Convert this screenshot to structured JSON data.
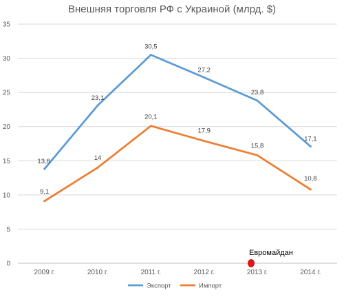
{
  "chart_data": {
    "type": "line",
    "title": "Внешняя торговля РФ с Украиной (млрд. $)",
    "xlabel": "",
    "ylabel": "",
    "categories": [
      "2009 г.",
      "2010 г.",
      "2011 г.",
      "2012 г.",
      "2013 г.",
      "2014 г."
    ],
    "series": [
      {
        "name": "Экспорт",
        "color": "#5b9bd5",
        "values": [
          13.8,
          23.1,
          30.5,
          27.2,
          23.8,
          17.1
        ],
        "labels": [
          "13,8",
          "23,1",
          "30,5",
          "27,2",
          "23,8",
          "17,1"
        ]
      },
      {
        "name": "Импорт",
        "color": "#ed7d31",
        "values": [
          9.1,
          14,
          20.1,
          17.9,
          15.8,
          10.8
        ],
        "labels": [
          "9,1",
          "14",
          "20,1",
          "17,9",
          "15,8",
          "10,8"
        ]
      }
    ],
    "ylim": [
      0,
      35
    ],
    "yticks": [
      0,
      5,
      10,
      15,
      20,
      25,
      30,
      35
    ],
    "ytick_labels": [
      "0",
      "5",
      "10",
      "15",
      "20",
      "25",
      "30",
      "35"
    ],
    "grid": true,
    "legend_position": "bottom",
    "annotation": {
      "text": "Евромайдан",
      "category": "2013 г.",
      "value": 0,
      "marker_color": "#e8141c"
    }
  }
}
